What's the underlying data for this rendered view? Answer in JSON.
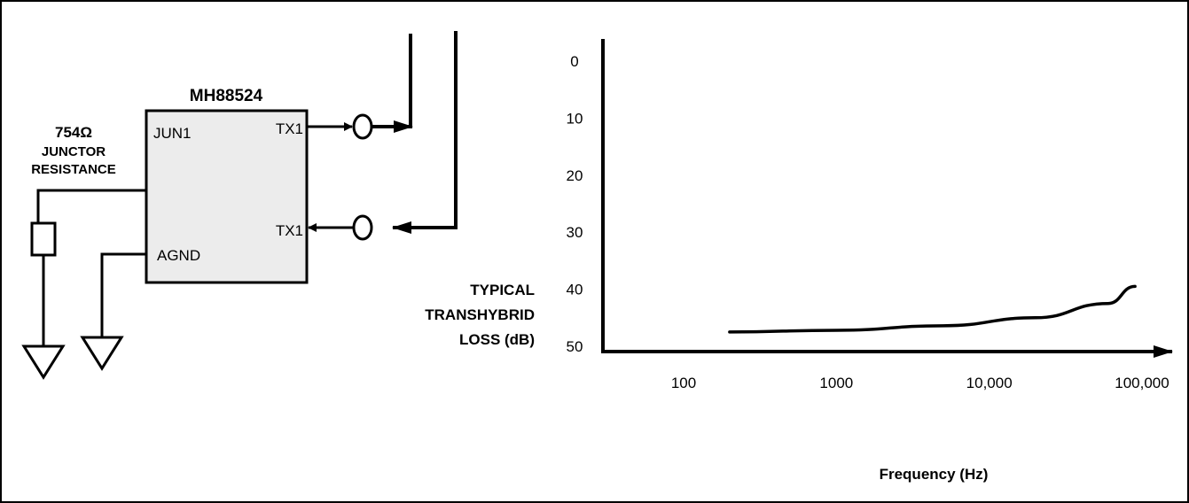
{
  "circuit": {
    "chip_name": "MH88524",
    "pin_jun": "JUN1",
    "pin_tx_top": "TX1",
    "pin_tx_bottom": "TX1",
    "pin_agnd": "AGND",
    "resistor_value": "754Ω",
    "resistor_label_line1": "JUNCTOR",
    "resistor_label_line2": "RESISTANCE"
  },
  "chart_data": {
    "type": "line",
    "ylabel_lines": [
      "TYPICAL",
      "TRANSHYBRID",
      "LOSS  (dB)"
    ],
    "xlabel": "Frequency (Hz)",
    "y_ticks": [
      "0",
      "10",
      "20",
      "30",
      "40",
      "50"
    ],
    "x_ticks": [
      "100",
      "1000",
      "10,000",
      "100,000"
    ],
    "x_scale": "log",
    "ylim": [
      0,
      50
    ],
    "y_inverted": true,
    "series": [
      {
        "x": [
          200,
          1000,
          5000,
          20000,
          60000,
          90000
        ],
        "y": [
          47.5,
          47.2,
          46.4,
          45.0,
          42.5,
          39.5
        ]
      }
    ]
  }
}
